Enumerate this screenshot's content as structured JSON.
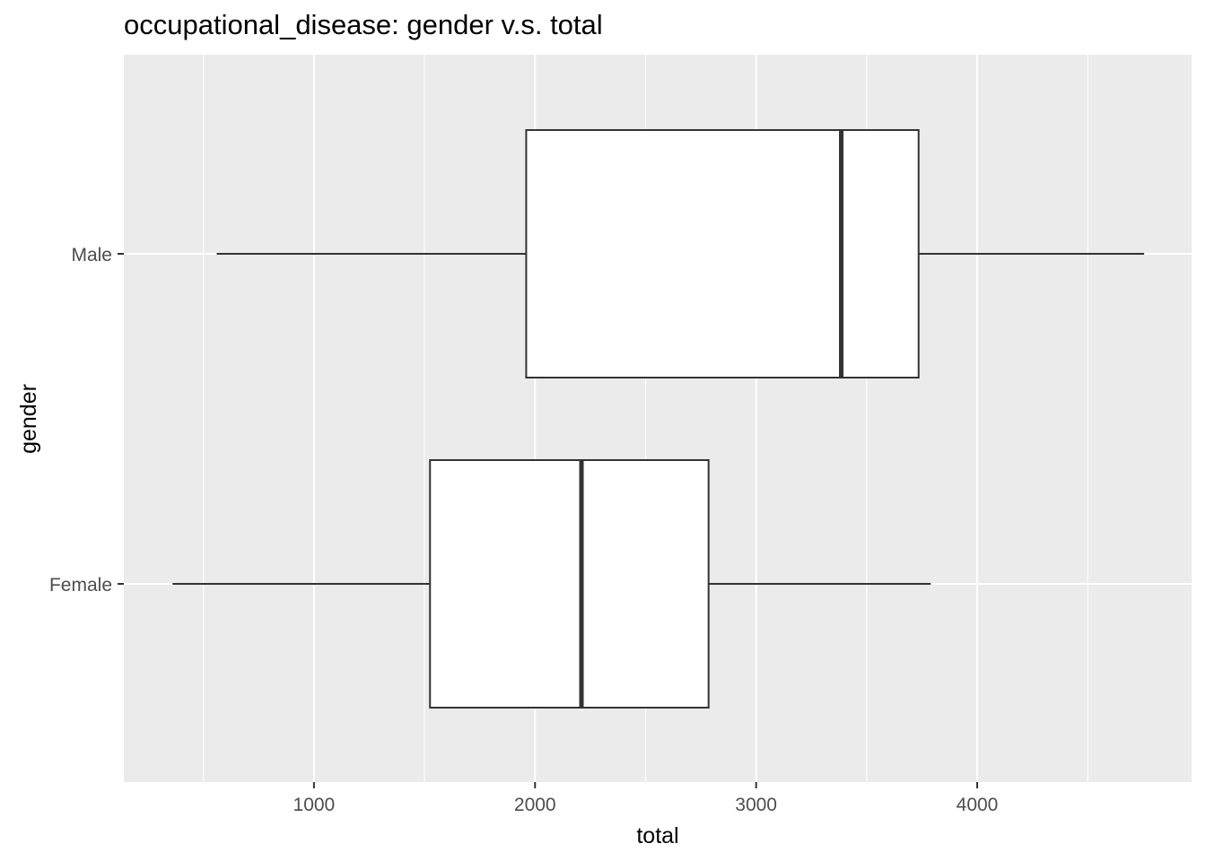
{
  "chart_data": {
    "type": "boxplot",
    "orientation": "horizontal",
    "title": "occupational_disease: gender v.s. total",
    "xlabel": "total",
    "ylabel": "gender",
    "xlim": [
      140,
      4970
    ],
    "x_ticks": [
      1000,
      2000,
      3000,
      4000
    ],
    "x_minor_ticks": [
      500,
      1500,
      2500,
      3500,
      4500
    ],
    "categories": [
      "Male",
      "Female"
    ],
    "boxes": [
      {
        "category": "Male",
        "min": 560,
        "q1": 1960,
        "median": 3385,
        "q3": 3735,
        "max": 4755
      },
      {
        "category": "Female",
        "min": 360,
        "q1": 1525,
        "median": 2210,
        "q3": 2785,
        "max": 3790
      }
    ],
    "grid": true,
    "legend": "none",
    "colors": {
      "panel": "#EBEBEB",
      "grid": "#FFFFFF",
      "box_fill": "#FFFFFF",
      "box_stroke": "#333333",
      "tick_text": "#4D4D4D"
    }
  }
}
